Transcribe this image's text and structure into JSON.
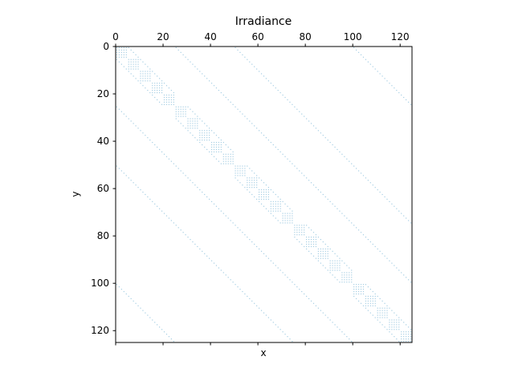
{
  "chart_data": {
    "type": "heatmap",
    "subtype": "sparsity-pattern",
    "title": "Irradiance",
    "xlabel": "x",
    "ylabel": "y",
    "xlim": [
      0,
      125
    ],
    "ylim": [
      125,
      0
    ],
    "x_ticks": [
      0,
      20,
      40,
      60,
      80,
      100,
      120
    ],
    "y_ticks": [
      0,
      20,
      40,
      60,
      80,
      100,
      120
    ],
    "x_tick_position": "top",
    "grid": false,
    "marker_color": "#a6cee3",
    "pattern": {
      "matrix_size": 125,
      "block_size": 25,
      "sub_block_size": 5,
      "diagonal_offsets": [
        -25,
        25,
        -50,
        50,
        -100,
        100
      ],
      "sub_diagonal_offsets": [
        -5,
        5
      ]
    }
  }
}
